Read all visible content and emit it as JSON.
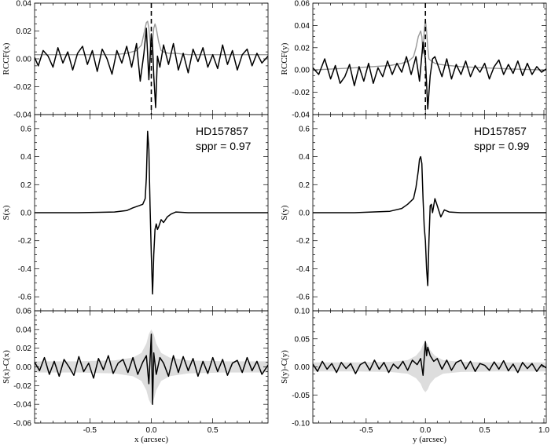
{
  "chart_data": [
    {
      "id": "x-rccf",
      "type": "line",
      "xlim": [
        -0.95,
        0.95
      ],
      "ylim": [
        -0.04,
        0.04
      ],
      "yticks": [
        -0.04,
        -0.02,
        0.0,
        0.02,
        0.04
      ],
      "yticklabels": [
        "-0.04",
        "-0.02",
        "0.00",
        "0.02",
        "0.04"
      ],
      "xticks": [
        -0.5,
        0.0,
        0.5
      ],
      "xticklabels": [],
      "ylabel": "RCCF(x)",
      "vline": 0.0,
      "series": [
        {
          "color": "#999999",
          "x": [
            -0.95,
            -0.6,
            -0.3,
            -0.2,
            -0.12,
            -0.08,
            -0.06,
            -0.04,
            -0.03,
            -0.02,
            -0.01,
            0.0,
            0.01,
            0.02,
            0.03,
            0.04,
            0.06,
            0.08,
            0.1,
            0.14,
            0.2,
            0.3,
            0.5,
            0.7,
            0.95
          ],
          "y": [
            0.003,
            0.003,
            0.003,
            0.004,
            0.006,
            0.01,
            0.018,
            0.026,
            0.027,
            0.022,
            0.012,
            0.0,
            0.012,
            0.022,
            0.025,
            0.022,
            0.012,
            0.006,
            0.005,
            0.004,
            0.004,
            0.003,
            0.003,
            0.003,
            0.003
          ]
        },
        {
          "color": "#000000",
          "x": [
            -0.95,
            -0.92,
            -0.88,
            -0.84,
            -0.8,
            -0.76,
            -0.72,
            -0.68,
            -0.64,
            -0.6,
            -0.56,
            -0.52,
            -0.48,
            -0.44,
            -0.4,
            -0.36,
            -0.32,
            -0.28,
            -0.24,
            -0.2,
            -0.16,
            -0.12,
            -0.09,
            -0.06,
            -0.04,
            -0.02,
            0.0,
            0.01,
            0.02,
            0.035,
            0.05,
            0.07,
            0.1,
            0.14,
            0.18,
            0.22,
            0.26,
            0.3,
            0.34,
            0.38,
            0.42,
            0.46,
            0.5,
            0.54,
            0.58,
            0.62,
            0.66,
            0.7,
            0.74,
            0.78,
            0.82,
            0.86,
            0.9,
            0.95
          ],
          "y": [
            0.001,
            -0.005,
            0.006,
            0.002,
            -0.006,
            0.008,
            -0.003,
            0.005,
            -0.008,
            0.004,
            0.009,
            -0.004,
            0.006,
            -0.009,
            0.007,
            0.0,
            -0.011,
            0.006,
            -0.003,
            0.009,
            -0.006,
            0.011,
            -0.016,
            0.004,
            0.022,
            -0.015,
            0.018,
            0.01,
            -0.012,
            -0.035,
            0.002,
            -0.006,
            0.01,
            -0.004,
            0.011,
            -0.008,
            0.004,
            -0.01,
            0.007,
            -0.002,
            0.008,
            -0.006,
            0.003,
            -0.007,
            0.01,
            -0.004,
            0.006,
            -0.008,
            0.003,
            0.007,
            -0.005,
            0.004,
            -0.003,
            0.002
          ]
        }
      ]
    },
    {
      "id": "x-s",
      "type": "line",
      "xlim": [
        -0.95,
        0.95
      ],
      "ylim": [
        -0.7,
        0.7
      ],
      "yticks": [
        -0.6,
        -0.4,
        -0.2,
        0.0,
        0.2,
        0.4,
        0.6
      ],
      "yticklabels": [
        "-0.6",
        "-0.4",
        "-0.2",
        "0.0",
        "0.2",
        "0.4",
        "0.6"
      ],
      "xticks": [
        -0.5,
        0.0,
        0.5
      ],
      "xticklabels": [],
      "ylabel": "S(x)",
      "annotation": [
        "HD157857",
        "sppr = 0.97"
      ],
      "series": [
        {
          "color": "#000000",
          "x": [
            -0.95,
            -0.6,
            -0.3,
            -0.2,
            -0.15,
            -0.1,
            -0.07,
            -0.05,
            -0.04,
            -0.03,
            -0.02,
            -0.01,
            0.0,
            0.01,
            0.02,
            0.03,
            0.04,
            0.05,
            0.06,
            0.08,
            0.1,
            0.13,
            0.16,
            0.2,
            0.3,
            0.6,
            0.95
          ],
          "y": [
            0.0,
            0.0,
            0.005,
            0.015,
            0.035,
            0.05,
            0.06,
            0.1,
            0.25,
            0.58,
            0.45,
            0.05,
            -0.3,
            -0.58,
            -0.3,
            -0.12,
            -0.08,
            -0.12,
            -0.1,
            -0.05,
            -0.07,
            -0.03,
            -0.01,
            0.005,
            0.0,
            0.0,
            0.0
          ]
        }
      ]
    },
    {
      "id": "x-resid",
      "type": "line",
      "xlim": [
        -0.95,
        0.95
      ],
      "ylim": [
        -0.06,
        0.06
      ],
      "yticks": [
        -0.06,
        -0.04,
        -0.02,
        0.0,
        0.02,
        0.04,
        0.06
      ],
      "yticklabels": [
        "-0.06",
        "-0.04",
        "-0.02",
        "0.00",
        "0.02",
        "0.04",
        "0.06"
      ],
      "xticks": [
        -0.5,
        0.0,
        0.5
      ],
      "xticklabels": [
        "-0.5",
        "0.0",
        "0.5"
      ],
      "ylabel": "S(x)-C(x)",
      "xlabel": "x (arcsec)",
      "band": {
        "color": "#dddddd",
        "x": [
          -0.95,
          -0.6,
          -0.3,
          -0.15,
          -0.08,
          -0.04,
          -0.02,
          0.0,
          0.02,
          0.04,
          0.08,
          0.15,
          0.3,
          0.6,
          0.95
        ],
        "half": [
          0.006,
          0.006,
          0.007,
          0.01,
          0.015,
          0.025,
          0.035,
          0.04,
          0.035,
          0.025,
          0.015,
          0.01,
          0.007,
          0.006,
          0.006
        ]
      },
      "series": [
        {
          "color": "#000000",
          "x": [
            -0.95,
            -0.91,
            -0.87,
            -0.83,
            -0.79,
            -0.75,
            -0.71,
            -0.67,
            -0.63,
            -0.59,
            -0.55,
            -0.51,
            -0.47,
            -0.43,
            -0.39,
            -0.35,
            -0.31,
            -0.27,
            -0.23,
            -0.19,
            -0.15,
            -0.11,
            -0.07,
            -0.04,
            -0.02,
            0.0,
            0.01,
            0.02,
            0.04,
            0.07,
            0.1,
            0.14,
            0.18,
            0.22,
            0.26,
            0.3,
            0.34,
            0.38,
            0.42,
            0.46,
            0.5,
            0.54,
            0.58,
            0.62,
            0.66,
            0.7,
            0.74,
            0.78,
            0.82,
            0.86,
            0.9,
            0.95
          ],
          "y": [
            0.005,
            -0.004,
            0.01,
            -0.008,
            0.006,
            -0.01,
            0.008,
            0.0,
            -0.009,
            0.011,
            -0.005,
            0.004,
            -0.012,
            0.009,
            -0.003,
            0.012,
            -0.007,
            0.004,
            0.008,
            -0.006,
            0.01,
            -0.008,
            0.005,
            0.012,
            -0.018,
            0.035,
            -0.04,
            0.015,
            -0.008,
            0.01,
            0.004,
            -0.01,
            0.012,
            -0.006,
            0.011,
            -0.004,
            0.009,
            -0.01,
            0.006,
            -0.007,
            0.01,
            -0.005,
            0.008,
            -0.009,
            0.004,
            0.007,
            -0.006,
            0.01,
            -0.004,
            0.006,
            -0.008,
            0.002
          ]
        }
      ]
    },
    {
      "id": "y-rccf",
      "type": "line",
      "xlim": [
        -0.95,
        1.02
      ],
      "ylim": [
        -0.04,
        0.06
      ],
      "yticks": [
        -0.04,
        -0.02,
        0.0,
        0.02,
        0.04,
        0.06
      ],
      "yticklabels": [
        "-0.04",
        "-0.02",
        "0.00",
        "0.02",
        "0.04",
        "0.06"
      ],
      "xticks": [
        -0.5,
        0.0,
        0.5,
        1.0
      ],
      "xticklabels": [],
      "ylabel": "RCCF(y)",
      "vline": 0.0,
      "series": [
        {
          "color": "#999999",
          "x": [
            -0.95,
            -0.6,
            -0.3,
            -0.2,
            -0.14,
            -0.1,
            -0.08,
            -0.06,
            -0.04,
            -0.03,
            -0.02,
            -0.01,
            0.0,
            0.01,
            0.02,
            0.03,
            0.05,
            0.08,
            0.12,
            0.2,
            0.3,
            0.5,
            0.7,
            1.02
          ],
          "y": [
            0.0,
            0.002,
            0.004,
            0.006,
            0.008,
            0.012,
            0.02,
            0.03,
            0.035,
            0.03,
            0.015,
            0.035,
            0.045,
            0.035,
            0.02,
            0.01,
            0.008,
            0.006,
            0.005,
            0.004,
            0.003,
            0.002,
            0.001,
            0.0
          ]
        },
        {
          "color": "#000000",
          "x": [
            -0.95,
            -0.9,
            -0.85,
            -0.8,
            -0.76,
            -0.72,
            -0.68,
            -0.64,
            -0.6,
            -0.56,
            -0.52,
            -0.48,
            -0.44,
            -0.4,
            -0.36,
            -0.32,
            -0.28,
            -0.24,
            -0.2,
            -0.16,
            -0.12,
            -0.08,
            -0.05,
            -0.02,
            0.0,
            0.01,
            0.02,
            0.04,
            0.06,
            0.08,
            0.11,
            0.14,
            0.18,
            0.22,
            0.26,
            0.3,
            0.34,
            0.38,
            0.42,
            0.46,
            0.5,
            0.54,
            0.58,
            0.62,
            0.66,
            0.7,
            0.74,
            0.78,
            0.82,
            0.86,
            0.9,
            0.94,
            0.98,
            1.02
          ],
          "y": [
            0.002,
            -0.004,
            0.01,
            -0.008,
            0.004,
            -0.012,
            -0.006,
            0.005,
            -0.014,
            0.003,
            -0.01,
            0.006,
            -0.012,
            0.002,
            -0.006,
            0.008,
            -0.004,
            0.006,
            -0.002,
            0.012,
            -0.004,
            0.012,
            -0.01,
            0.025,
            0.01,
            -0.012,
            -0.035,
            -0.005,
            0.01,
            0.012,
            0.003,
            -0.006,
            0.01,
            -0.008,
            0.005,
            -0.004,
            0.008,
            -0.006,
            0.004,
            -0.002,
            0.006,
            -0.008,
            0.003,
            0.009,
            -0.004,
            0.005,
            -0.003,
            0.008,
            -0.005,
            0.006,
            -0.004,
            0.003,
            -0.002,
            0.001
          ]
        }
      ]
    },
    {
      "id": "y-s",
      "type": "line",
      "xlim": [
        -0.95,
        1.02
      ],
      "ylim": [
        -0.7,
        0.7
      ],
      "yticks": [
        -0.6,
        -0.4,
        -0.2,
        0.0,
        0.2,
        0.4,
        0.6
      ],
      "yticklabels": [
        "-0.6",
        "-0.4",
        "-0.2",
        "0.0",
        "0.2",
        "0.4",
        "0.6"
      ],
      "xticks": [
        -0.5,
        0.0,
        0.5,
        1.0
      ],
      "xticklabels": [],
      "ylabel": "S(y)",
      "annotation": [
        "HD157857",
        "sppr = 0.99"
      ],
      "series": [
        {
          "color": "#000000",
          "x": [
            -0.95,
            -0.6,
            -0.3,
            -0.2,
            -0.15,
            -0.1,
            -0.08,
            -0.06,
            -0.05,
            -0.04,
            -0.03,
            -0.02,
            -0.01,
            0.0,
            0.01,
            0.02,
            0.03,
            0.04,
            0.05,
            0.06,
            0.08,
            0.1,
            0.13,
            0.16,
            0.2,
            0.3,
            0.6,
            1.02
          ],
          "y": [
            0.0,
            0.0,
            0.01,
            0.03,
            0.06,
            0.1,
            0.18,
            0.3,
            0.38,
            0.4,
            0.35,
            0.1,
            -0.1,
            -0.2,
            -0.4,
            -0.52,
            -0.2,
            0.05,
            0.06,
            0.0,
            0.1,
            0.05,
            -0.03,
            0.02,
            0.005,
            0.0,
            0.0,
            0.0
          ]
        }
      ]
    },
    {
      "id": "y-resid",
      "type": "line",
      "xlim": [
        -0.95,
        1.02
      ],
      "ylim": [
        -0.1,
        0.1
      ],
      "yticks": [
        -0.1,
        -0.05,
        0.0,
        0.05,
        0.1
      ],
      "yticklabels": [
        "-0.10",
        "-0.05",
        "0.00",
        "0.05",
        "0.10"
      ],
      "xticks": [
        -0.5,
        0.0,
        0.5,
        1.0
      ],
      "xticklabels": [
        "-0.5",
        "0.0",
        "0.5",
        "1.0"
      ],
      "ylabel": "S(y)-C(y)",
      "xlabel": "y (arcsec)",
      "band": {
        "color": "#dddddd",
        "x": [
          -0.95,
          -0.6,
          -0.3,
          -0.15,
          -0.08,
          -0.04,
          -0.02,
          0.0,
          0.02,
          0.04,
          0.08,
          0.15,
          0.3,
          0.6,
          1.02
        ],
        "half": [
          0.008,
          0.008,
          0.009,
          0.012,
          0.02,
          0.03,
          0.04,
          0.045,
          0.04,
          0.03,
          0.02,
          0.012,
          0.009,
          0.008,
          0.008
        ]
      },
      "series": [
        {
          "color": "#000000",
          "x": [
            -0.95,
            -0.91,
            -0.87,
            -0.83,
            -0.79,
            -0.75,
            -0.71,
            -0.67,
            -0.63,
            -0.59,
            -0.55,
            -0.51,
            -0.47,
            -0.43,
            -0.39,
            -0.35,
            -0.31,
            -0.27,
            -0.23,
            -0.19,
            -0.15,
            -0.11,
            -0.07,
            -0.04,
            -0.02,
            0.0,
            0.01,
            0.02,
            0.04,
            0.07,
            0.1,
            0.14,
            0.18,
            0.22,
            0.26,
            0.3,
            0.34,
            0.38,
            0.42,
            0.46,
            0.5,
            0.54,
            0.58,
            0.62,
            0.66,
            0.7,
            0.74,
            0.78,
            0.82,
            0.86,
            0.9,
            0.94,
            0.98,
            1.02
          ],
          "y": [
            0.005,
            -0.008,
            0.01,
            -0.004,
            0.006,
            -0.01,
            0.008,
            -0.003,
            0.006,
            -0.012,
            0.004,
            0.009,
            -0.006,
            0.012,
            -0.004,
            0.008,
            -0.01,
            0.005,
            -0.003,
            0.01,
            -0.006,
            0.012,
            0.004,
            0.015,
            -0.015,
            0.045,
            0.02,
            0.035,
            0.02,
            0.01,
            0.015,
            -0.004,
            0.012,
            -0.006,
            0.008,
            0.012,
            -0.004,
            0.01,
            -0.008,
            0.006,
            0.003,
            -0.006,
            0.009,
            -0.004,
            0.011,
            -0.007,
            0.005,
            -0.01,
            0.008,
            -0.003,
            0.006,
            -0.008,
            0.004,
            -0.002
          ]
        }
      ]
    }
  ]
}
